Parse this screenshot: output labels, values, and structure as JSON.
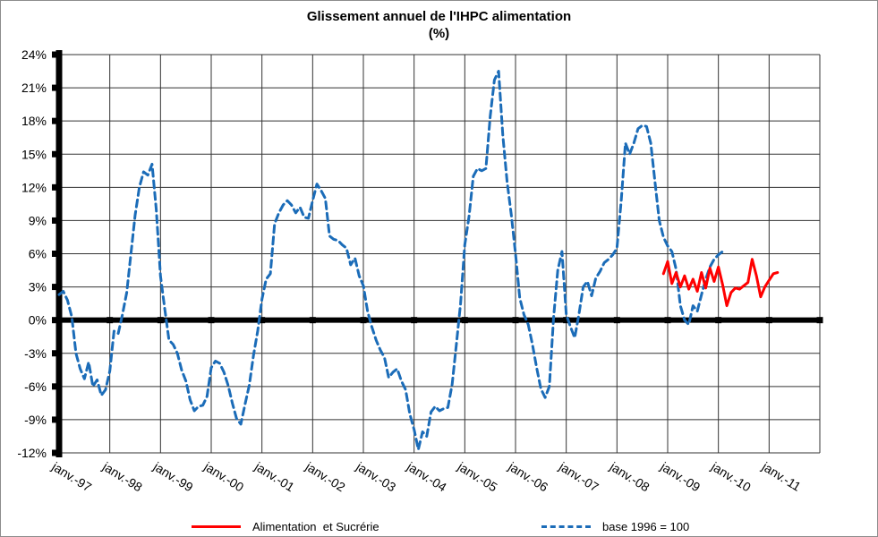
{
  "chart_data": {
    "type": "line",
    "title": "Glissement annuel de l'IHPC alimentation",
    "subtitle": "(%)",
    "xlabel": "",
    "ylabel": "",
    "ylim": [
      -12,
      24
    ],
    "ytick_step": 3,
    "yticks": [
      "24%",
      "21%",
      "18%",
      "15%",
      "12%",
      "9%",
      "6%",
      "3%",
      "0%",
      "-3%",
      "-6%",
      "-9%",
      "-12%"
    ],
    "x_axis_labels": [
      "janv.-97",
      "janv.-98",
      "janv.-99",
      "janv.-00",
      "janv.-01",
      "janv.-02",
      "janv.-03",
      "janv.-04",
      "janv.-05",
      "janv.-06",
      "janv.-07",
      "janv.-08",
      "janv.-09",
      "janv.-10",
      "janv.-11"
    ],
    "x_unit": "month",
    "months_per_tick": 12,
    "grid": true,
    "legend_position": "bottom",
    "colors": {
      "alimentation_et_sucrerie": "#ff0000",
      "base_1996": "#1b6cb8",
      "gridline": "#333333",
      "axis": "#000000"
    },
    "series": [
      {
        "name": "Alimentation  et Sucrérie",
        "color": "#ff0000",
        "style": "solid",
        "start_month": "déc.-08",
        "start_index": 143,
        "values": [
          4.2,
          5.3,
          3.3,
          4.3,
          3.0,
          4.0,
          2.8,
          3.7,
          2.6,
          4.3,
          2.9,
          4.7,
          3.5,
          4.8,
          3.2,
          1.3,
          2.5,
          2.9,
          2.8,
          3.1,
          3.4,
          5.5,
          4.0,
          2.1,
          3.0,
          3.6,
          4.2,
          4.3
        ]
      },
      {
        "name": "base 1996 = 100",
        "color": "#1b6cb8",
        "style": "dashed",
        "start_month": "janv.-97",
        "start_index": 0,
        "values": [
          2.3,
          2.6,
          1.8,
          0.3,
          -3.0,
          -4.4,
          -5.3,
          -3.8,
          -6.0,
          -5.4,
          -6.8,
          -6.3,
          -4.6,
          -1.0,
          -1.2,
          0.5,
          2.5,
          6.0,
          9.5,
          12.0,
          13.4,
          13.1,
          14.1,
          10.0,
          4.0,
          1.0,
          -1.8,
          -2.2,
          -3.0,
          -4.5,
          -5.5,
          -7.2,
          -8.2,
          -7.8,
          -7.7,
          -6.9,
          -4.3,
          -3.7,
          -3.9,
          -4.7,
          -5.9,
          -7.5,
          -8.9,
          -9.4,
          -7.6,
          -5.9,
          -3.2,
          -1.0,
          1.9,
          3.7,
          4.2,
          8.7,
          9.7,
          10.4,
          10.8,
          10.4,
          9.7,
          10.2,
          9.3,
          9.2,
          10.8,
          12.3,
          11.7,
          11.0,
          7.6,
          7.3,
          7.2,
          6.8,
          6.5,
          5.0,
          5.6,
          4.0,
          3.1,
          0.8,
          -0.6,
          -1.8,
          -2.7,
          -3.4,
          -5.2,
          -4.7,
          -4.4,
          -5.5,
          -6.3,
          -8.5,
          -9.9,
          -11.7,
          -10.1,
          -10.5,
          -8.3,
          -7.8,
          -8.2,
          -8.0,
          -7.9,
          -5.8,
          -2.2,
          1.5,
          6.8,
          9.4,
          13.0,
          13.7,
          13.5,
          13.7,
          18.4,
          21.7,
          22.5,
          16.7,
          12.5,
          9.5,
          6.0,
          2.0,
          0.5,
          -0.4,
          -2.2,
          -4.3,
          -6.2,
          -7.0,
          -6.0,
          0.2,
          4.5,
          6.2,
          0.5,
          -0.6,
          -1.6,
          0.5,
          3.0,
          3.5,
          2.2,
          3.8,
          4.4,
          5.2,
          5.5,
          5.9,
          6.5,
          10.8,
          16.0,
          15.0,
          16.0,
          17.3,
          17.6,
          17.5,
          16.0,
          12.5,
          9.0,
          7.5,
          6.7,
          6.2,
          4.6,
          1.3,
          0.0,
          -0.4,
          1.3,
          0.8,
          2.3,
          3.7,
          4.8,
          5.5,
          5.9,
          6.2
        ]
      }
    ]
  }
}
